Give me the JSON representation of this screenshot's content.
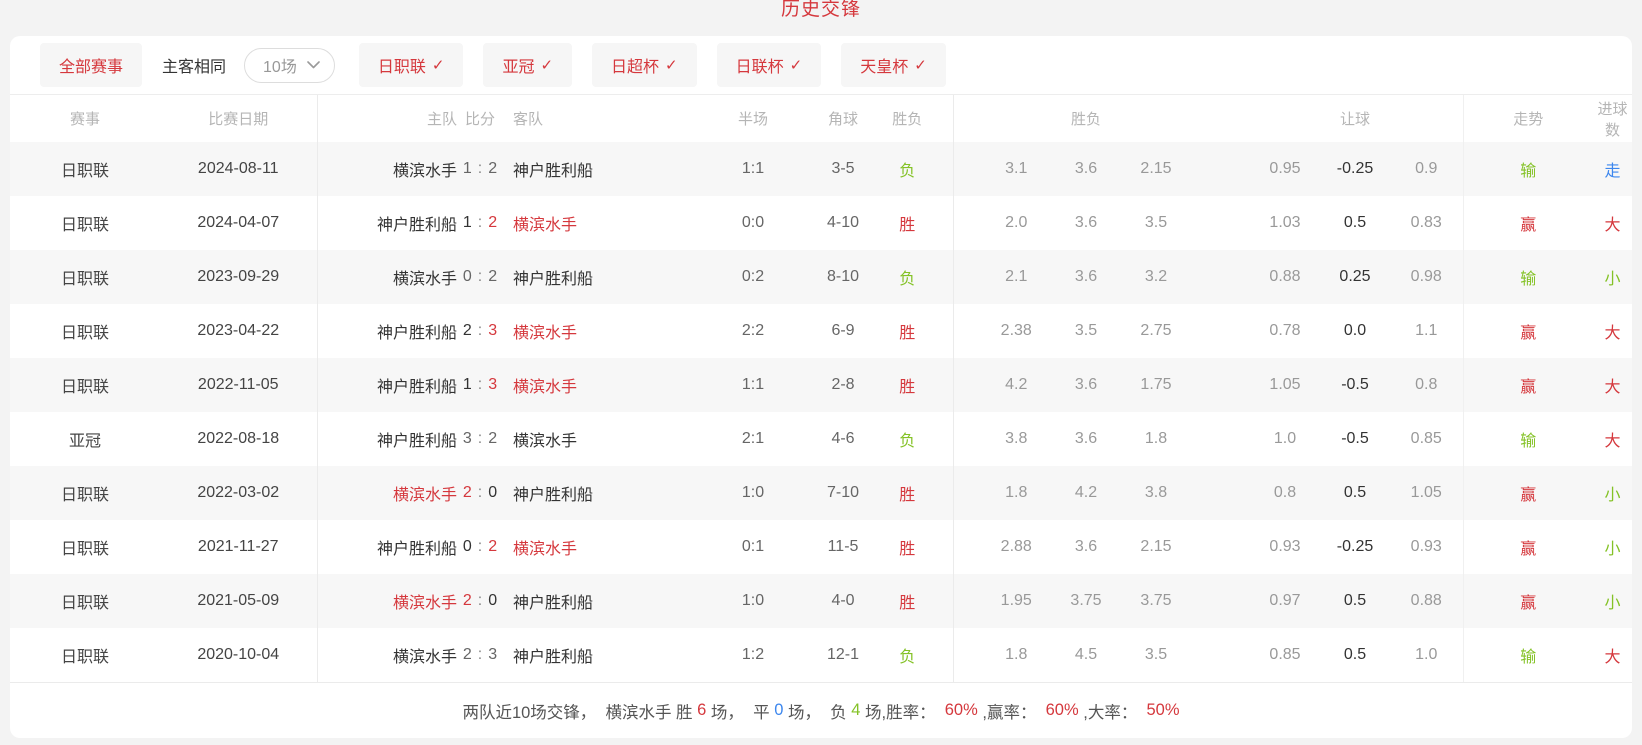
{
  "page": {
    "title": "历史交锋"
  },
  "colors": {
    "red": "#d5383d",
    "green": "#84c226",
    "blue": "#3d87ee",
    "dark": "#555555"
  },
  "filters": {
    "all_label": "全部赛事",
    "same_venue_label": "主客相同",
    "count_select": {
      "value": "10场"
    },
    "leagues": [
      {
        "label": "日职联",
        "checked": true
      },
      {
        "label": "亚冠",
        "checked": true
      },
      {
        "label": "日超杯",
        "checked": true
      },
      {
        "label": "日联杯",
        "checked": true
      },
      {
        "label": "天皇杯",
        "checked": true
      }
    ]
  },
  "table": {
    "header_cells": [
      "赛事",
      "比赛日期",
      "主队",
      "比分",
      "客队",
      "半场",
      "角球",
      "胜负",
      "",
      "胜负",
      "",
      "",
      "让球",
      "",
      "走势",
      "进球数"
    ],
    "rows": [
      {
        "league": "日职联",
        "date": "2024-08-11",
        "home": "横滨水手",
        "score_home": "1",
        "score_away": "2",
        "away": "神户胜利船",
        "highlight": null,
        "half": "1:1",
        "corner": "3-5",
        "result": "负",
        "result_color": "green",
        "odds": [
          "3.1",
          "3.6",
          "2.15"
        ],
        "handicap": [
          "0.95",
          "-0.25",
          "0.9"
        ],
        "trend": "输",
        "trend_color": "green",
        "goals": "走",
        "goals_color": "blue"
      },
      {
        "league": "日职联",
        "date": "2024-04-07",
        "home": "神户胜利船",
        "score_home": "1",
        "score_away": "2",
        "away": "横滨水手",
        "highlight": "away",
        "half": "0:0",
        "corner": "4-10",
        "result": "胜",
        "result_color": "red",
        "odds": [
          "2.0",
          "3.6",
          "3.5"
        ],
        "handicap": [
          "1.03",
          "0.5",
          "0.83"
        ],
        "trend": "赢",
        "trend_color": "red",
        "goals": "大",
        "goals_color": "red"
      },
      {
        "league": "日职联",
        "date": "2023-09-29",
        "home": "横滨水手",
        "score_home": "0",
        "score_away": "2",
        "away": "神户胜利船",
        "highlight": null,
        "half": "0:2",
        "corner": "8-10",
        "result": "负",
        "result_color": "green",
        "odds": [
          "2.1",
          "3.6",
          "3.2"
        ],
        "handicap": [
          "0.88",
          "0.25",
          "0.98"
        ],
        "trend": "输",
        "trend_color": "green",
        "goals": "小",
        "goals_color": "green"
      },
      {
        "league": "日职联",
        "date": "2023-04-22",
        "home": "神户胜利船",
        "score_home": "2",
        "score_away": "3",
        "away": "横滨水手",
        "highlight": "away",
        "half": "2:2",
        "corner": "6-9",
        "result": "胜",
        "result_color": "red",
        "odds": [
          "2.38",
          "3.5",
          "2.75"
        ],
        "handicap": [
          "0.78",
          "0.0",
          "1.1"
        ],
        "trend": "赢",
        "trend_color": "red",
        "goals": "大",
        "goals_color": "red"
      },
      {
        "league": "日职联",
        "date": "2022-11-05",
        "home": "神户胜利船",
        "score_home": "1",
        "score_away": "3",
        "away": "横滨水手",
        "highlight": "away",
        "half": "1:1",
        "corner": "2-8",
        "result": "胜",
        "result_color": "red",
        "odds": [
          "4.2",
          "3.6",
          "1.75"
        ],
        "handicap": [
          "1.05",
          "-0.5",
          "0.8"
        ],
        "trend": "赢",
        "trend_color": "red",
        "goals": "大",
        "goals_color": "red"
      },
      {
        "league": "亚冠",
        "date": "2022-08-18",
        "home": "神户胜利船",
        "score_home": "3",
        "score_away": "2",
        "away": "横滨水手",
        "highlight": null,
        "half": "2:1",
        "corner": "4-6",
        "result": "负",
        "result_color": "green",
        "odds": [
          "3.8",
          "3.6",
          "1.8"
        ],
        "handicap": [
          "1.0",
          "-0.5",
          "0.85"
        ],
        "trend": "输",
        "trend_color": "green",
        "goals": "大",
        "goals_color": "red"
      },
      {
        "league": "日职联",
        "date": "2022-03-02",
        "home": "横滨水手",
        "score_home": "2",
        "score_away": "0",
        "away": "神户胜利船",
        "highlight": "home",
        "half": "1:0",
        "corner": "7-10",
        "result": "胜",
        "result_color": "red",
        "odds": [
          "1.8",
          "4.2",
          "3.8"
        ],
        "handicap": [
          "0.8",
          "0.5",
          "1.05"
        ],
        "trend": "赢",
        "trend_color": "red",
        "goals": "小",
        "goals_color": "green"
      },
      {
        "league": "日职联",
        "date": "2021-11-27",
        "home": "神户胜利船",
        "score_home": "0",
        "score_away": "2",
        "away": "横滨水手",
        "highlight": "away",
        "half": "0:1",
        "corner": "11-5",
        "result": "胜",
        "result_color": "red",
        "odds": [
          "2.88",
          "3.6",
          "2.15"
        ],
        "handicap": [
          "0.93",
          "-0.25",
          "0.93"
        ],
        "trend": "赢",
        "trend_color": "red",
        "goals": "小",
        "goals_color": "green"
      },
      {
        "league": "日职联",
        "date": "2021-05-09",
        "home": "横滨水手",
        "score_home": "2",
        "score_away": "0",
        "away": "神户胜利船",
        "highlight": "home",
        "half": "1:0",
        "corner": "4-0",
        "result": "胜",
        "result_color": "red",
        "odds": [
          "1.95",
          "3.75",
          "3.75"
        ],
        "handicap": [
          "0.97",
          "0.5",
          "0.88"
        ],
        "trend": "赢",
        "trend_color": "red",
        "goals": "小",
        "goals_color": "green"
      },
      {
        "league": "日职联",
        "date": "2020-10-04",
        "home": "横滨水手",
        "score_home": "2",
        "score_away": "3",
        "away": "神户胜利船",
        "highlight": null,
        "half": "1:2",
        "corner": "12-1",
        "result": "负",
        "result_color": "green",
        "odds": [
          "1.8",
          "4.5",
          "3.5"
        ],
        "handicap": [
          "0.85",
          "0.5",
          "1.0"
        ],
        "trend": "输",
        "trend_color": "green",
        "goals": "大",
        "goals_color": "red"
      }
    ]
  },
  "summary": {
    "segments": [
      {
        "text": "两队近10场交锋，  横滨水手 胜 ",
        "color": "dark"
      },
      {
        "text": "6",
        "color": "red"
      },
      {
        "text": " 场，  平 ",
        "color": "dark"
      },
      {
        "text": "0",
        "color": "blue"
      },
      {
        "text": " 场，  负 ",
        "color": "dark"
      },
      {
        "text": "4",
        "color": "green"
      },
      {
        "text": " 场,胜率：  ",
        "color": "dark"
      },
      {
        "text": "60%",
        "color": "red"
      },
      {
        "text": " ,赢率：  ",
        "color": "dark"
      },
      {
        "text": "60%",
        "color": "red"
      },
      {
        "text": " ,大率：  ",
        "color": "dark"
      },
      {
        "text": "50%",
        "color": "red"
      }
    ]
  }
}
